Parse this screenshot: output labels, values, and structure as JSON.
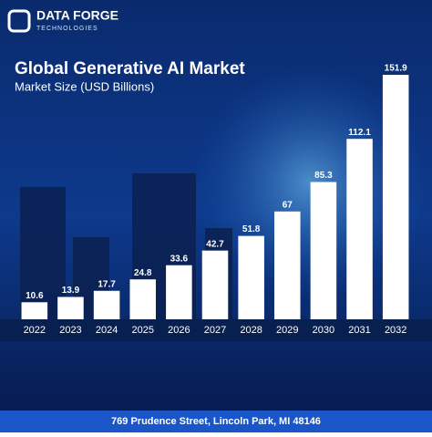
{
  "brand": {
    "name": "DATA FORGE",
    "tagline": "TECHNOLOGIES"
  },
  "chart_data": {
    "type": "bar",
    "title": "Global Generative AI Market",
    "subtitle": "Market Size (USD Billions)",
    "categories": [
      "2022",
      "2023",
      "2024",
      "2025",
      "2026",
      "2027",
      "2028",
      "2029",
      "2030",
      "2031",
      "2032"
    ],
    "values": [
      10.6,
      13.9,
      17.7,
      24.8,
      33.6,
      42.7,
      51.8,
      67,
      85.3,
      112.1,
      151.9
    ],
    "color": "#ffffff"
  },
  "footer": {
    "address": "769 Prudence Street, Lincoln Park, MI 48146"
  }
}
